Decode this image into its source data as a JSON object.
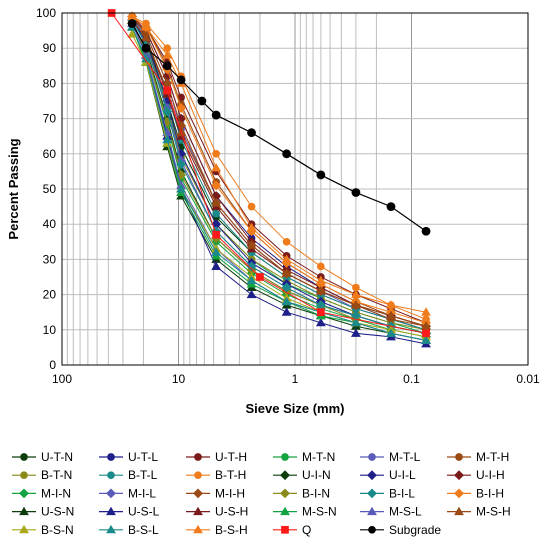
{
  "chart_data": {
    "type": "line",
    "xlabel": "Sieve Size (mm)",
    "ylabel": "Percent Passing",
    "x_scale": "log",
    "x_reversed": true,
    "xlim": [
      100,
      0.01
    ],
    "ylim": [
      0,
      100
    ],
    "x_ticks": [
      "100",
      "10",
      "1",
      "0.1",
      "0.01"
    ],
    "y_ticks": [
      "0",
      "10",
      "20",
      "30",
      "40",
      "50",
      "60",
      "70",
      "80",
      "90",
      "100"
    ],
    "grid": true,
    "legend_position": "bottom",
    "x": [
      25,
      19,
      12.5,
      9.5,
      4.75,
      2.36,
      1.18,
      0.6,
      0.3,
      0.15,
      0.075
    ],
    "series": [
      {
        "name": "U-T-N",
        "color": "#0d3d0d",
        "marker": "circle",
        "values": [
          98,
          93,
          75,
          62,
          42,
          32,
          25,
          20,
          16,
          13,
          10
        ]
      },
      {
        "name": "U-T-L",
        "color": "#1f1f8a",
        "marker": "circle",
        "values": [
          98,
          95,
          82,
          70,
          48,
          36,
          28,
          22,
          17,
          13,
          10
        ]
      },
      {
        "name": "U-T-H",
        "color": "#7a1a1a",
        "marker": "circle",
        "values": [
          99,
          96,
          86,
          76,
          55,
          40,
          31,
          25,
          20,
          16,
          12
        ]
      },
      {
        "name": "M-T-N",
        "color": "#13a340",
        "marker": "circle",
        "values": [
          98,
          92,
          74,
          60,
          40,
          30,
          23,
          19,
          15,
          12,
          9
        ]
      },
      {
        "name": "M-T-L",
        "color": "#5a5ab8",
        "marker": "circle",
        "values": [
          98,
          94,
          80,
          67,
          46,
          34,
          26,
          21,
          16,
          13,
          10
        ]
      },
      {
        "name": "M-T-H",
        "color": "#9a4a14",
        "marker": "circle",
        "values": [
          99,
          96,
          85,
          74,
          52,
          38,
          29,
          23,
          18,
          14,
          11
        ]
      },
      {
        "name": "B-T-N",
        "color": "#8a8a1a",
        "marker": "circle",
        "values": [
          98,
          92,
          73,
          59,
          40,
          30,
          24,
          19,
          15,
          12,
          10
        ]
      },
      {
        "name": "B-T-L",
        "color": "#1a8a8a",
        "marker": "circle",
        "values": [
          98,
          93,
          77,
          64,
          43,
          32,
          25,
          20,
          16,
          13,
          10
        ]
      },
      {
        "name": "B-T-H",
        "color": "#f07b1a",
        "marker": "circle",
        "values": [
          99,
          97,
          90,
          82,
          60,
          45,
          35,
          28,
          22,
          17,
          13
        ]
      },
      {
        "name": "U-I-N",
        "color": "#0d3d0d",
        "marker": "diamond",
        "values": [
          97,
          90,
          70,
          55,
          36,
          27,
          21,
          17,
          14,
          11,
          9
        ]
      },
      {
        "name": "U-I-L",
        "color": "#1f1f8a",
        "marker": "diamond",
        "values": [
          98,
          92,
          75,
          60,
          40,
          29,
          23,
          18,
          14,
          11,
          9
        ]
      },
      {
        "name": "U-I-H",
        "color": "#7a1a1a",
        "marker": "diamond",
        "values": [
          99,
          95,
          82,
          70,
          48,
          35,
          27,
          22,
          17,
          14,
          11
        ]
      },
      {
        "name": "M-I-N",
        "color": "#13a340",
        "marker": "diamond",
        "values": [
          97,
          89,
          68,
          53,
          35,
          26,
          20,
          16,
          13,
          10,
          8
        ]
      },
      {
        "name": "M-I-L",
        "color": "#5a5ab8",
        "marker": "diamond",
        "values": [
          98,
          91,
          73,
          58,
          38,
          28,
          22,
          17,
          14,
          11,
          9
        ]
      },
      {
        "name": "M-I-H",
        "color": "#9a4a14",
        "marker": "diamond",
        "values": [
          99,
          94,
          80,
          68,
          46,
          34,
          26,
          21,
          17,
          13,
          11
        ]
      },
      {
        "name": "B-I-N",
        "color": "#8a8a1a",
        "marker": "diamond",
        "values": [
          97,
          89,
          69,
          54,
          36,
          27,
          21,
          17,
          13,
          11,
          9
        ]
      },
      {
        "name": "B-I-L",
        "color": "#1a8a8a",
        "marker": "diamond",
        "values": [
          98,
          91,
          72,
          57,
          38,
          28,
          22,
          17,
          14,
          11,
          9
        ]
      },
      {
        "name": "B-I-H",
        "color": "#f07b1a",
        "marker": "diamond",
        "values": [
          99,
          96,
          84,
          73,
          51,
          38,
          29,
          23,
          18,
          15,
          12
        ]
      },
      {
        "name": "U-S-N",
        "color": "#0d3d0d",
        "marker": "triangle",
        "values": [
          96,
          86,
          62,
          48,
          30,
          22,
          17,
          14,
          11,
          9,
          7
        ]
      },
      {
        "name": "U-S-L",
        "color": "#1f1f8a",
        "marker": "triangle",
        "values": [
          97,
          88,
          65,
          50,
          28,
          20,
          15,
          12,
          9,
          8,
          6
        ]
      },
      {
        "name": "U-S-H",
        "color": "#7a1a1a",
        "marker": "triangle",
        "values": [
          98,
          93,
          77,
          65,
          45,
          33,
          26,
          21,
          17,
          14,
          11
        ]
      },
      {
        "name": "M-S-N",
        "color": "#13a340",
        "marker": "triangle",
        "values": [
          96,
          86,
          63,
          49,
          31,
          23,
          18,
          14,
          12,
          9,
          7
        ]
      },
      {
        "name": "M-S-L",
        "color": "#5a5ab8",
        "marker": "triangle",
        "values": [
          97,
          88,
          66,
          51,
          33,
          24,
          18,
          15,
          12,
          9,
          7
        ]
      },
      {
        "name": "M-S-H",
        "color": "#9a4a14",
        "marker": "triangle",
        "values": [
          98,
          93,
          78,
          66,
          46,
          34,
          26,
          21,
          17,
          14,
          11
        ]
      },
      {
        "name": "B-S-N",
        "color": "#a8a81a",
        "marker": "triangle",
        "values": [
          94,
          86,
          63,
          50,
          33,
          25,
          19,
          15,
          12,
          10,
          8
        ]
      },
      {
        "name": "B-S-L",
        "color": "#1a8a8a",
        "marker": "triangle",
        "values": [
          96,
          87,
          64,
          50,
          32,
          24,
          18,
          15,
          12,
          9,
          7
        ]
      },
      {
        "name": "B-S-H",
        "color": "#f07b1a",
        "marker": "triangle",
        "values": [
          99,
          96,
          88,
          80,
          56,
          39,
          30,
          24,
          20,
          17,
          15
        ]
      },
      {
        "name": "Q",
        "color": "#ff1a1a",
        "marker": "square",
        "x": [
          37.5,
          12.5,
          4.75,
          2.0,
          0.6,
          0.075
        ],
        "values": [
          100,
          78,
          37,
          25,
          15,
          9
        ]
      },
      {
        "name": "Subgrade",
        "color": "#000000",
        "marker": "circle",
        "x": [
          25,
          19,
          12.5,
          9.5,
          6.3,
          4.75,
          2.36,
          1.18,
          0.6,
          0.3,
          0.15,
          0.075
        ],
        "values": [
          97,
          90,
          85,
          81,
          75,
          71,
          66,
          60,
          54,
          49,
          45,
          38
        ]
      }
    ]
  }
}
